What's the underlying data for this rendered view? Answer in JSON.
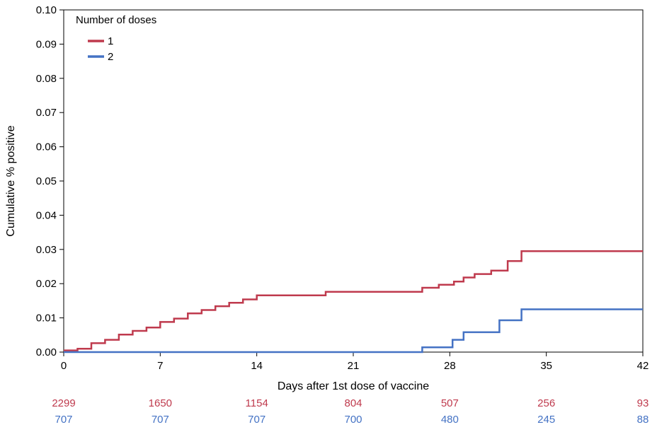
{
  "chart_data": {
    "type": "line",
    "subtype": "step",
    "title": "",
    "xlabel": "Days after 1st dose of vaccine",
    "ylabel": "Cumulative % positive",
    "xlim": [
      0,
      42
    ],
    "ylim": [
      0,
      0.1
    ],
    "xticks": [
      0,
      7,
      14,
      21,
      28,
      35,
      42
    ],
    "yticks": [
      0.0,
      0.01,
      0.02,
      0.03,
      0.04,
      0.05,
      0.06,
      0.07,
      0.08,
      0.09,
      0.1
    ],
    "grid": false,
    "legend": {
      "title": "Number of doses",
      "position": "inside-top-left"
    },
    "series": [
      {
        "name": "1",
        "color": "#BF3A4D",
        "steps": [
          [
            0,
            0.0005
          ],
          [
            1,
            0.001
          ],
          [
            2,
            0.0026
          ],
          [
            3,
            0.0036
          ],
          [
            4,
            0.0051
          ],
          [
            5,
            0.0062
          ],
          [
            6,
            0.0072
          ],
          [
            7,
            0.0088
          ],
          [
            8,
            0.0098
          ],
          [
            9,
            0.0113
          ],
          [
            10,
            0.0123
          ],
          [
            11,
            0.0134
          ],
          [
            12,
            0.0144
          ],
          [
            13,
            0.0154
          ],
          [
            14,
            0.0166
          ],
          [
            19,
            0.0176
          ],
          [
            26,
            0.0188
          ],
          [
            27.2,
            0.0197
          ],
          [
            28.3,
            0.0206
          ],
          [
            29,
            0.0218
          ],
          [
            29.8,
            0.0228
          ],
          [
            31,
            0.0238
          ],
          [
            32.2,
            0.0266
          ],
          [
            33.2,
            0.0295
          ]
        ],
        "final_value": 0.0295
      },
      {
        "name": "2",
        "color": "#4472C4",
        "steps": [
          [
            0,
            0.0
          ],
          [
            26,
            0.0014
          ],
          [
            28.2,
            0.0036
          ],
          [
            29,
            0.0058
          ],
          [
            31.6,
            0.0093
          ],
          [
            33.2,
            0.0125
          ]
        ],
        "final_value": 0.0125
      }
    ],
    "at_risk": {
      "rows": [
        {
          "series": "1",
          "color": "#BF3A4D",
          "values": [
            2299,
            1650,
            1154,
            804,
            507,
            256,
            93
          ]
        },
        {
          "series": "2",
          "color": "#4472C4",
          "values": [
            707,
            707,
            707,
            700,
            480,
            245,
            88
          ]
        }
      ]
    }
  }
}
